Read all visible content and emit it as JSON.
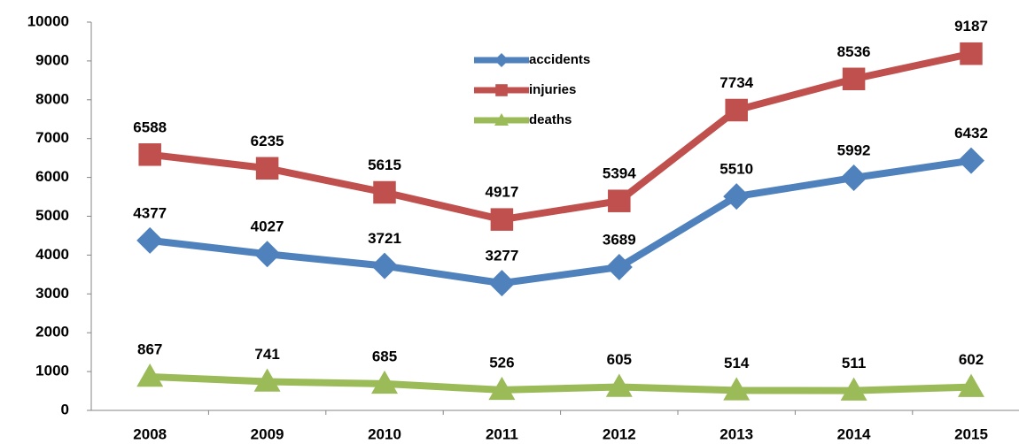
{
  "chart_data": {
    "type": "line",
    "categories": [
      "2008",
      "2009",
      "2010",
      "2011",
      "2012",
      "2013",
      "2014",
      "2015"
    ],
    "series": [
      {
        "name": "accidents",
        "color": "#4f81bd",
        "marker": "diamond",
        "values": [
          4377,
          4027,
          3721,
          3277,
          3689,
          5510,
          5992,
          6432
        ]
      },
      {
        "name": "injuries",
        "color": "#c0504d",
        "marker": "square",
        "values": [
          6588,
          6235,
          5615,
          4917,
          5394,
          7734,
          8536,
          9187
        ]
      },
      {
        "name": "deaths",
        "color": "#9bbb59",
        "marker": "triangle",
        "values": [
          867,
          741,
          685,
          526,
          605,
          514,
          511,
          602
        ]
      }
    ],
    "ylim": [
      0,
      10000
    ],
    "yticks": [
      0,
      1000,
      2000,
      3000,
      4000,
      5000,
      6000,
      7000,
      8000,
      9000,
      10000
    ],
    "grid": false
  }
}
